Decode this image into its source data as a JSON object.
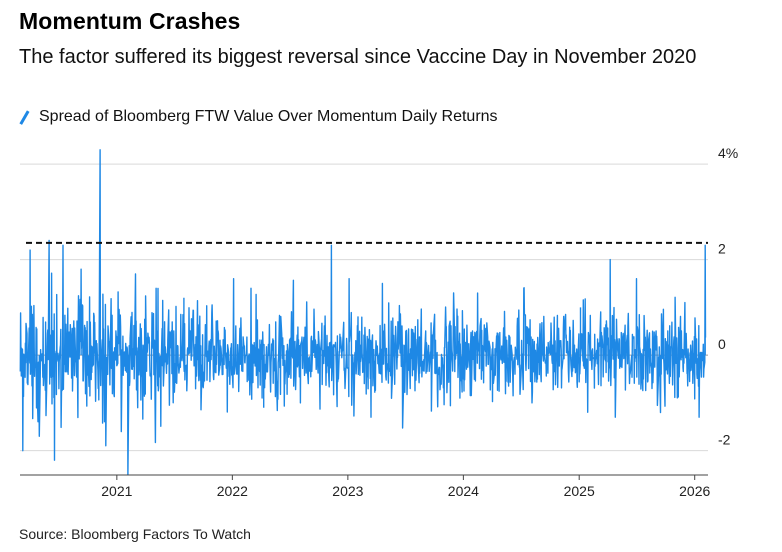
{
  "title": "Momentum Crashes",
  "subtitle": "The factor suffered its biggest reversal since Vaccine Day in November 2020",
  "source": "Source: Bloomberg Factors To Watch",
  "colors": {
    "series": "#1e88e5",
    "grid": "#d9d9d9",
    "reference": "#111111"
  },
  "chart_data": {
    "type": "line",
    "series": [
      {
        "name": "Spread of Bloomberg FTW Value Over Momentum Daily Returns",
        "color": "#1e88e5",
        "unit": "%",
        "frequency": "daily",
        "start": "2020-03-01",
        "end": "2026-02-05",
        "base_noise": 0.45,
        "key_points": [
          {
            "date": "2020-03-10",
            "value": -2.0
          },
          {
            "date": "2020-04-02",
            "value": 2.2
          },
          {
            "date": "2020-05-01",
            "value": -1.7
          },
          {
            "date": "2020-06-01",
            "value": 2.4
          },
          {
            "date": "2020-06-18",
            "value": -2.2
          },
          {
            "date": "2020-07-15",
            "value": 2.3
          },
          {
            "date": "2020-09-10",
            "value": 1.8
          },
          {
            "date": "2020-11-09",
            "value": 4.3
          },
          {
            "date": "2020-11-25",
            "value": -1.3
          },
          {
            "date": "2021-01-15",
            "value": -1.6
          },
          {
            "date": "2021-02-05",
            "value": -2.5
          },
          {
            "date": "2021-03-01",
            "value": 1.7
          },
          {
            "date": "2021-03-08",
            "value": -1.1
          },
          {
            "date": "2021-05-05",
            "value": 1.4
          },
          {
            "date": "2021-08-01",
            "value": 1.2
          },
          {
            "date": "2022-01-05",
            "value": 1.6
          },
          {
            "date": "2022-03-01",
            "value": 1.4
          },
          {
            "date": "2022-04-10",
            "value": -1.1
          },
          {
            "date": "2022-11-10",
            "value": 2.3
          },
          {
            "date": "2023-01-05",
            "value": 1.6
          },
          {
            "date": "2023-03-15",
            "value": -1.3
          },
          {
            "date": "2023-04-20",
            "value": 1.5
          },
          {
            "date": "2024-02-15",
            "value": 1.3
          },
          {
            "date": "2024-07-10",
            "value": 1.4
          },
          {
            "date": "2024-08-05",
            "value": -1.0
          },
          {
            "date": "2025-01-05",
            "value": 1.0
          },
          {
            "date": "2025-04-09",
            "value": 2.0
          },
          {
            "date": "2025-04-25",
            "value": -1.3
          },
          {
            "date": "2025-07-01",
            "value": 1.6
          },
          {
            "date": "2025-09-15",
            "value": -1.2
          },
          {
            "date": "2025-12-01",
            "value": 1.1
          },
          {
            "date": "2026-01-15",
            "value": -1.3
          },
          {
            "date": "2026-02-03",
            "value": 2.3
          }
        ]
      }
    ],
    "reference_line": {
      "value": 2.35,
      "style": "dashed"
    },
    "x": {
      "min": "2020-03-01",
      "max": "2026-02-12",
      "ticks": [
        {
          "label": "2021",
          "date": "2021-01-01"
        },
        {
          "label": "2022",
          "date": "2022-01-01"
        },
        {
          "label": "2023",
          "date": "2023-01-01"
        },
        {
          "label": "2024",
          "date": "2024-01-01"
        },
        {
          "label": "2025",
          "date": "2025-01-01"
        },
        {
          "label": "2026",
          "date": "2026-01-01"
        }
      ]
    },
    "y": {
      "min": -2.3,
      "max": 4.4,
      "ticks": [
        {
          "label": "4%",
          "value": 4
        },
        {
          "label": "2",
          "value": 2
        },
        {
          "label": "0",
          "value": 0
        },
        {
          "label": "-2",
          "value": -2
        }
      ]
    },
    "grid": true,
    "legend": "top-left"
  }
}
